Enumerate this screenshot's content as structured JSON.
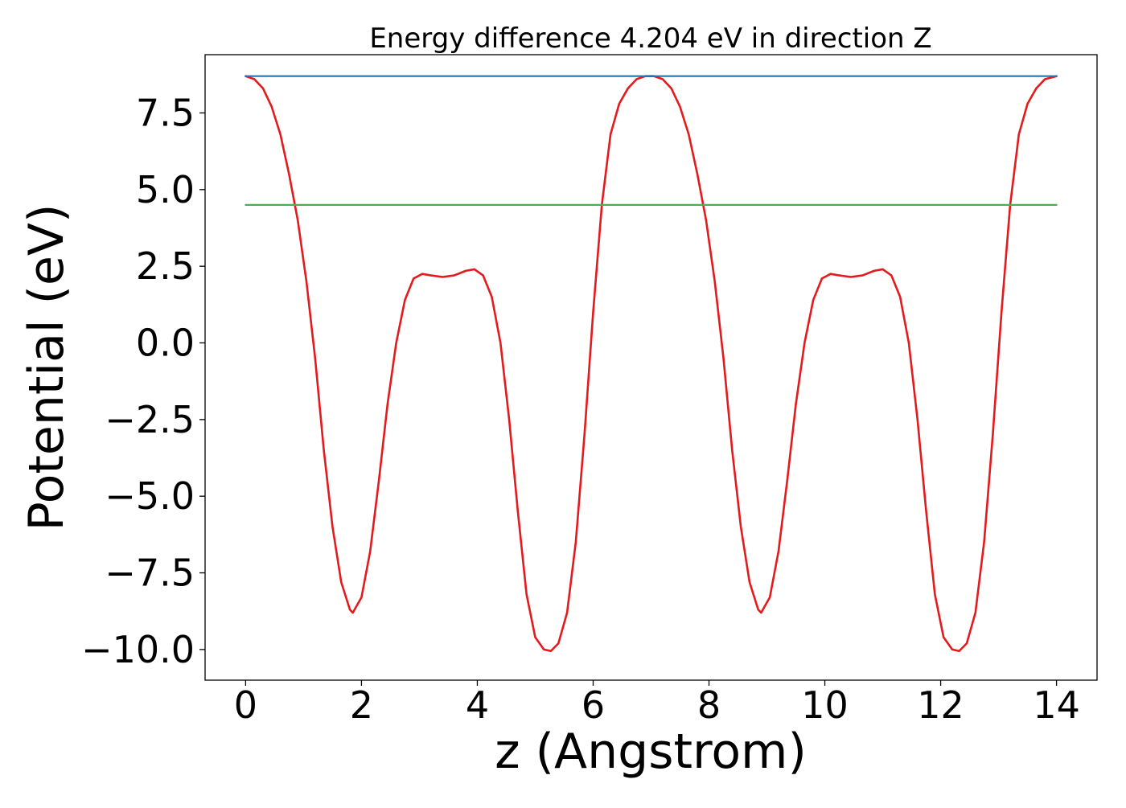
{
  "chart_data": {
    "type": "line",
    "title": "Energy difference 4.204 eV in direction Z",
    "xlabel": "z (Angstrom)",
    "ylabel": "Potential (eV)",
    "xlim": [
      -0.7,
      14.7
    ],
    "ylim": [
      -11.0,
      9.4
    ],
    "x_ticks": [
      0,
      2,
      4,
      6,
      8,
      10,
      12,
      14
    ],
    "x_tick_labels": [
      "0",
      "2",
      "4",
      "6",
      "8",
      "10",
      "12",
      "14"
    ],
    "y_ticks": [
      7.5,
      5.0,
      2.5,
      0.0,
      -2.5,
      -5.0,
      -7.5,
      -10.0
    ],
    "y_tick_labels": [
      "7.5",
      "5.0",
      "2.5",
      "0.0",
      "−2.5",
      "−5.0",
      "−7.5",
      "−10.0"
    ],
    "grid": false,
    "legend": "none",
    "series": [
      {
        "color": "#e41a1c",
        "x": [
          0.0,
          0.15,
          0.3,
          0.45,
          0.6,
          0.75,
          0.9,
          1.05,
          1.2,
          1.35,
          1.5,
          1.65,
          1.8,
          1.85,
          2.0,
          2.15,
          2.3,
          2.45,
          2.6,
          2.75,
          2.9,
          3.05,
          3.2,
          3.4,
          3.6,
          3.8,
          3.95,
          4.1,
          4.25,
          4.4,
          4.55,
          4.7,
          4.85,
          5.0,
          5.15,
          5.27,
          5.4,
          5.55,
          5.7,
          5.85,
          6.0,
          6.15,
          6.3,
          6.45,
          6.6,
          6.75,
          6.9,
          7.05,
          7.2,
          7.35,
          7.5,
          7.65,
          7.8,
          7.95,
          8.1,
          8.25,
          8.4,
          8.55,
          8.7,
          8.85,
          8.9,
          9.05,
          9.2,
          9.35,
          9.5,
          9.65,
          9.8,
          9.95,
          10.1,
          10.25,
          10.45,
          10.65,
          10.85,
          11.0,
          11.15,
          11.3,
          11.45,
          11.6,
          11.75,
          11.9,
          12.05,
          12.2,
          12.32,
          12.45,
          12.6,
          12.75,
          12.9,
          13.05,
          13.2,
          13.35,
          13.5,
          13.65,
          13.8,
          14.0
        ],
        "y": [
          8.7,
          8.6,
          8.3,
          7.7,
          6.8,
          5.5,
          4.0,
          2.0,
          -0.5,
          -3.5,
          -6.0,
          -7.8,
          -8.7,
          -8.8,
          -8.3,
          -6.8,
          -4.5,
          -2.0,
          0.0,
          1.4,
          2.1,
          2.25,
          2.2,
          2.15,
          2.2,
          2.35,
          2.4,
          2.2,
          1.5,
          0.0,
          -2.5,
          -5.5,
          -8.2,
          -9.6,
          -10.0,
          -10.05,
          -9.8,
          -8.8,
          -6.5,
          -3.0,
          1.0,
          4.5,
          6.8,
          7.8,
          8.3,
          8.6,
          8.7,
          8.7,
          8.6,
          8.3,
          7.7,
          6.8,
          5.5,
          4.0,
          2.0,
          -0.5,
          -3.5,
          -6.0,
          -7.8,
          -8.7,
          -8.8,
          -8.3,
          -6.8,
          -4.5,
          -2.0,
          0.0,
          1.4,
          2.1,
          2.25,
          2.2,
          2.15,
          2.2,
          2.35,
          2.4,
          2.2,
          1.5,
          0.0,
          -2.5,
          -5.5,
          -8.2,
          -9.6,
          -10.0,
          -10.05,
          -9.8,
          -8.8,
          -6.5,
          -3.0,
          1.0,
          4.5,
          6.8,
          7.8,
          8.3,
          8.6,
          8.7
        ]
      },
      {
        "color": "#1f77b4",
        "x": [
          0.0,
          14.0
        ],
        "y": [
          8.7,
          8.7
        ]
      },
      {
        "color": "#4daf4a",
        "x": [
          0.0,
          14.0
        ],
        "y": [
          4.5,
          4.5
        ]
      }
    ]
  }
}
